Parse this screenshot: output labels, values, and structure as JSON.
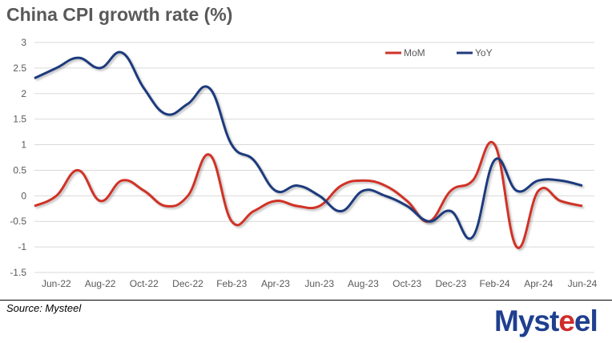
{
  "chart_data": {
    "type": "line",
    "title": "China CPI growth rate (%)",
    "xlabel": "",
    "ylabel": "",
    "ylim": [
      -1.5,
      3
    ],
    "yticks": [
      "3",
      "2.5",
      "2",
      "1.5",
      "1",
      "0.5",
      "0",
      "-0.5",
      "-1",
      "-1.5"
    ],
    "ytick_values": [
      3,
      2.5,
      2,
      1.5,
      1,
      0.5,
      0,
      -0.5,
      -1,
      -1.5
    ],
    "grid": true,
    "legend_position": "top-right",
    "x": [
      "May-22",
      "Jun-22",
      "Jul-22",
      "Aug-22",
      "Sep-22",
      "Oct-22",
      "Nov-22",
      "Dec-22",
      "Jan-23",
      "Feb-23",
      "Mar-23",
      "Apr-23",
      "May-23",
      "Jun-23",
      "Jul-23",
      "Aug-23",
      "Sep-23",
      "Oct-23",
      "Nov-23",
      "Dec-23",
      "Jan-24",
      "Feb-24",
      "Mar-24",
      "Apr-24",
      "May-24",
      "Jun-24"
    ],
    "xtick_labels": [
      "Jun-22",
      "Aug-22",
      "Oct-22",
      "Dec-22",
      "Feb-23",
      "Apr-23",
      "Jun-23",
      "Aug-23",
      "Oct-23",
      "Dec-23",
      "Feb-24",
      "Apr-24",
      "Jun-24"
    ],
    "series": [
      {
        "name": "MoM",
        "color": "#d03328",
        "values": [
          -0.2,
          0.0,
          0.5,
          -0.1,
          0.3,
          0.1,
          -0.2,
          0.0,
          0.8,
          -0.5,
          -0.3,
          -0.1,
          -0.2,
          -0.2,
          0.2,
          0.3,
          0.2,
          -0.1,
          -0.5,
          0.1,
          0.3,
          1.0,
          -1.0,
          0.1,
          -0.1,
          -0.2
        ]
      },
      {
        "name": "YoY",
        "color": "#1f3a7d",
        "values": [
          2.3,
          2.5,
          2.7,
          2.5,
          2.8,
          2.1,
          1.6,
          1.8,
          2.1,
          1.0,
          0.7,
          0.1,
          0.2,
          0.0,
          -0.3,
          0.1,
          0.0,
          -0.2,
          -0.5,
          -0.3,
          -0.8,
          0.7,
          0.1,
          0.3,
          0.3,
          0.2
        ]
      }
    ]
  },
  "footer": {
    "source": "Source: Mysteel"
  },
  "logo": {
    "text": "Mysteel"
  }
}
